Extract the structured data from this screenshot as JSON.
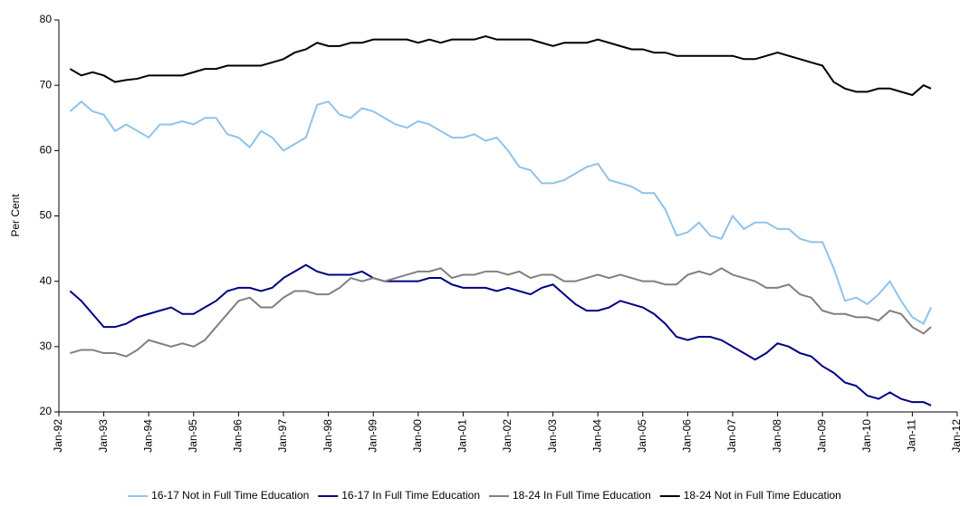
{
  "chart_data": {
    "type": "line",
    "y_label": "Per Cent",
    "ylim": [
      20,
      80
    ],
    "yticks": [
      20,
      30,
      40,
      50,
      60,
      70,
      80
    ],
    "xlim": [
      "1992-01",
      "2012-01"
    ],
    "xticks": [
      {
        "value": "1992-01",
        "label": "Jan-92"
      },
      {
        "value": "1993-01",
        "label": "Jan-93"
      },
      {
        "value": "1994-01",
        "label": "Jan-94"
      },
      {
        "value": "1995-01",
        "label": "Jan-95"
      },
      {
        "value": "1996-01",
        "label": "Jan-96"
      },
      {
        "value": "1997-01",
        "label": "Jan-97"
      },
      {
        "value": "1998-01",
        "label": "Jan-98"
      },
      {
        "value": "1999-01",
        "label": "Jan-99"
      },
      {
        "value": "2000-01",
        "label": "Jan-00"
      },
      {
        "value": "2001-01",
        "label": "Jan-01"
      },
      {
        "value": "2002-01",
        "label": "Jan-02"
      },
      {
        "value": "2003-01",
        "label": "Jan-03"
      },
      {
        "value": "2004-01",
        "label": "Jan-04"
      },
      {
        "value": "2005-01",
        "label": "Jan-05"
      },
      {
        "value": "2006-01",
        "label": "Jan-06"
      },
      {
        "value": "2007-01",
        "label": "Jan-07"
      },
      {
        "value": "2008-01",
        "label": "Jan-08"
      },
      {
        "value": "2009-01",
        "label": "Jan-09"
      },
      {
        "value": "2010-01",
        "label": "Jan-10"
      },
      {
        "value": "2011-01",
        "label": "Jan-11"
      },
      {
        "value": "2012-01",
        "label": "Jan-12"
      }
    ],
    "legend": "bottom",
    "x": [
      "1992-04",
      "1992-07",
      "1992-10",
      "1993-01",
      "1993-04",
      "1993-07",
      "1993-10",
      "1994-01",
      "1994-04",
      "1994-07",
      "1994-10",
      "1995-01",
      "1995-04",
      "1995-07",
      "1995-10",
      "1996-01",
      "1996-04",
      "1996-07",
      "1996-10",
      "1997-01",
      "1997-04",
      "1997-07",
      "1997-10",
      "1998-01",
      "1998-04",
      "1998-07",
      "1998-10",
      "1999-01",
      "1999-04",
      "1999-07",
      "1999-10",
      "2000-01",
      "2000-04",
      "2000-07",
      "2000-10",
      "2001-01",
      "2001-04",
      "2001-07",
      "2001-10",
      "2002-01",
      "2002-04",
      "2002-07",
      "2002-10",
      "2003-01",
      "2003-04",
      "2003-07",
      "2003-10",
      "2004-01",
      "2004-04",
      "2004-07",
      "2004-10",
      "2005-01",
      "2005-04",
      "2005-07",
      "2005-10",
      "2006-01",
      "2006-04",
      "2006-07",
      "2006-10",
      "2007-01",
      "2007-04",
      "2007-07",
      "2007-10",
      "2008-01",
      "2008-04",
      "2008-07",
      "2008-10",
      "2009-01",
      "2009-04",
      "2009-07",
      "2009-10",
      "2010-01",
      "2010-04",
      "2010-07",
      "2010-10",
      "2011-01",
      "2011-04",
      "2011-06"
    ],
    "series": [
      {
        "name": "16-17 Not in Full Time Education",
        "color": "#8fc3ea",
        "values": [
          66,
          67.5,
          66,
          65.5,
          63,
          64,
          63,
          62,
          64,
          64,
          64.5,
          64,
          65,
          65,
          62.5,
          62,
          60.5,
          63,
          62,
          60,
          61,
          62,
          67,
          67.5,
          65.5,
          65,
          66.5,
          66,
          65,
          64,
          63.5,
          64.5,
          64,
          63,
          62,
          62,
          62.5,
          61.5,
          62,
          60,
          57.5,
          57,
          55,
          55,
          55.5,
          56.5,
          57.5,
          58,
          55.5,
          55,
          54.5,
          53.5,
          53.5,
          51,
          47,
          47.5,
          49,
          47,
          46.5,
          50,
          48,
          49,
          49,
          48,
          48,
          46.5,
          46,
          46,
          42,
          37,
          37.5,
          36.5,
          38,
          40,
          37,
          34.5,
          33.5,
          36
        ]
      },
      {
        "name": "16-17 In Full Time Education",
        "color": "#000080",
        "values": [
          38.5,
          37,
          35,
          33,
          33,
          33.5,
          34.5,
          35,
          35.5,
          36,
          35,
          35,
          36,
          37,
          38.5,
          39,
          39,
          38.5,
          39,
          40.5,
          41.5,
          42.5,
          41.5,
          41,
          41,
          41,
          41.5,
          40.5,
          40,
          40,
          40,
          40,
          40.5,
          40.5,
          39.5,
          39,
          39,
          39,
          38.5,
          39,
          38.5,
          38,
          39,
          39.5,
          38,
          36.5,
          35.5,
          35.5,
          36,
          37,
          36.5,
          36,
          35,
          33.5,
          31.5,
          31,
          31.5,
          31.5,
          31,
          30,
          29,
          28,
          29,
          30.5,
          30,
          29,
          28.5,
          27,
          26,
          24.5,
          24,
          22.5,
          22,
          23,
          22,
          21.5,
          21.5,
          21
        ]
      },
      {
        "name": "18-24 In Full Time Education",
        "color": "#808080",
        "values": [
          29,
          29.5,
          29.5,
          29,
          29,
          28.5,
          29.5,
          31,
          30.5,
          30,
          30.5,
          30,
          31,
          33,
          35,
          37,
          37.5,
          36,
          36,
          37.5,
          38.5,
          38.5,
          38,
          38,
          39,
          40.5,
          40,
          40.5,
          40,
          40.5,
          41,
          41.5,
          41.5,
          42,
          40.5,
          41,
          41,
          41.5,
          41.5,
          41,
          41.5,
          40.5,
          41,
          41,
          40,
          40,
          40.5,
          41,
          40.5,
          41,
          40.5,
          40,
          40,
          39.5,
          39.5,
          41,
          41.5,
          41,
          42,
          41,
          40.5,
          40,
          39,
          39,
          39.5,
          38,
          37.5,
          35.5,
          35,
          35,
          34.5,
          34.5,
          34,
          35.5,
          35,
          33,
          32,
          33
        ]
      },
      {
        "name": "18-24 Not in Full  Time Education",
        "color": "#000000",
        "values": [
          72.5,
          71.5,
          72,
          71.5,
          70.5,
          70.8,
          71,
          71.5,
          71.5,
          71.5,
          71.5,
          72,
          72.5,
          72.5,
          73,
          73,
          73,
          73,
          73.5,
          74,
          75,
          75.5,
          76.5,
          76,
          76,
          76.5,
          76.5,
          77,
          77,
          77,
          77,
          76.5,
          77,
          76.5,
          77,
          77,
          77,
          77.5,
          77,
          77,
          77,
          77,
          76.5,
          76,
          76.5,
          76.5,
          76.5,
          77,
          76.5,
          76,
          75.5,
          75.5,
          75,
          75,
          74.5,
          74.5,
          74.5,
          74.5,
          74.5,
          74.5,
          74,
          74,
          74.5,
          75,
          74.5,
          74,
          73.5,
          73,
          70.5,
          69.5,
          69,
          69,
          69.5,
          69.5,
          69,
          68.5,
          70,
          69.5
        ]
      }
    ]
  }
}
